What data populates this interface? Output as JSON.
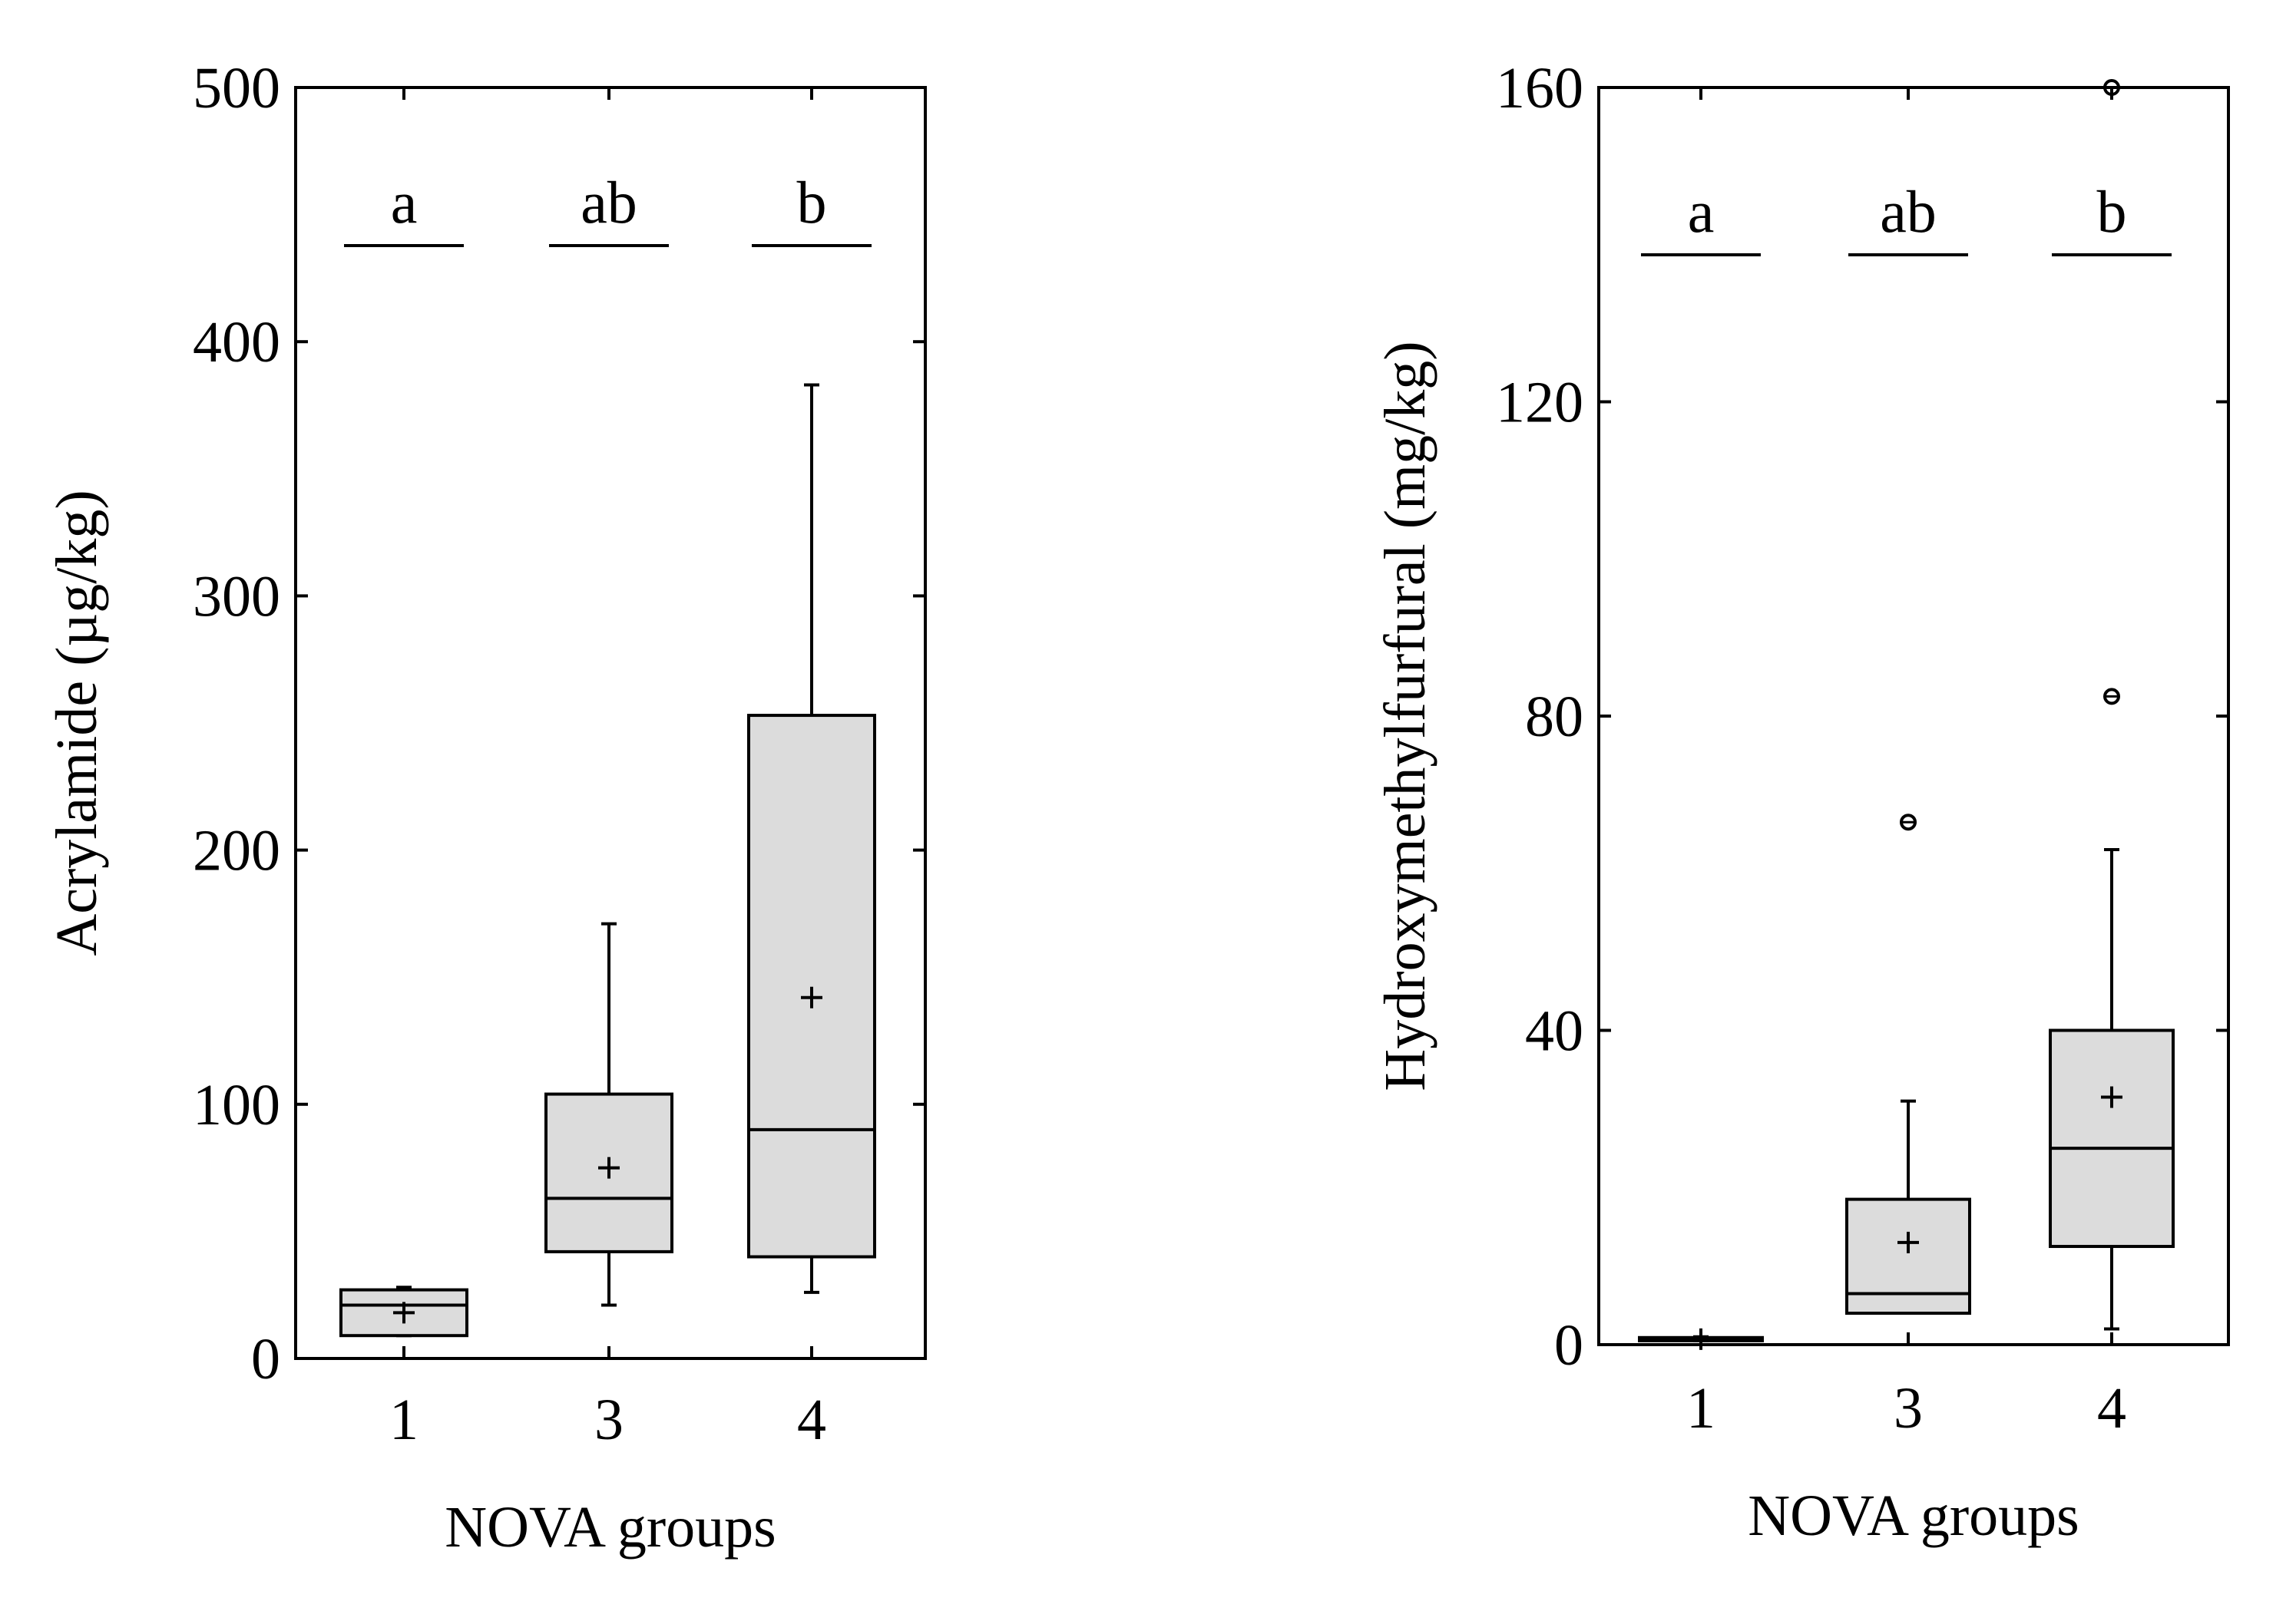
{
  "chart_data": [
    {
      "type": "box",
      "ylabel": "Acrylamide (µg/kg)",
      "xlabel": "NOVA groups",
      "ylim": [
        0,
        500
      ],
      "yticks": [
        "0",
        "100",
        "200",
        "300",
        "400",
        "500"
      ],
      "categories": [
        "1",
        "3",
        "4"
      ],
      "boxes": [
        {
          "category": "1",
          "whisker_low": 9,
          "q1": 9,
          "median": 21,
          "q3": 27,
          "whisker_high": 28,
          "mean": 18,
          "outliers": [],
          "letter": "a"
        },
        {
          "category": "3",
          "whisker_low": 21,
          "q1": 42,
          "median": 63,
          "q3": 104,
          "whisker_high": 171,
          "mean": 75,
          "outliers": [],
          "letter": "ab"
        },
        {
          "category": "4",
          "whisker_low": 26,
          "q1": 40,
          "median": 90,
          "q3": 253,
          "whisker_high": 383,
          "mean": 142,
          "outliers": [],
          "letter": "b"
        }
      ]
    },
    {
      "type": "box",
      "ylabel": "Hydroxymethylfurfural (mg/kg)",
      "xlabel": "NOVA groups",
      "ylim": [
        0,
        160
      ],
      "yticks": [
        "0",
        "40",
        "80",
        "120",
        "160"
      ],
      "categories": [
        "1",
        "3",
        "4"
      ],
      "boxes": [
        {
          "category": "1",
          "whisker_low": 0.5,
          "q1": 0.5,
          "median": 0.7,
          "q3": 0.9,
          "whisker_high": 1,
          "mean": 0.7,
          "outliers": [],
          "letter": "a"
        },
        {
          "category": "3",
          "whisker_low": 4,
          "q1": 4,
          "median": 6.5,
          "q3": 18.5,
          "whisker_high": 31,
          "mean": 13,
          "outliers": [
            66.5
          ],
          "letter": "ab"
        },
        {
          "category": "4",
          "whisker_low": 2,
          "q1": 12.5,
          "median": 25,
          "q3": 40,
          "whisker_high": 63,
          "mean": 31.5,
          "outliers": [
            82.5,
            160
          ],
          "letter": "b"
        }
      ]
    }
  ]
}
